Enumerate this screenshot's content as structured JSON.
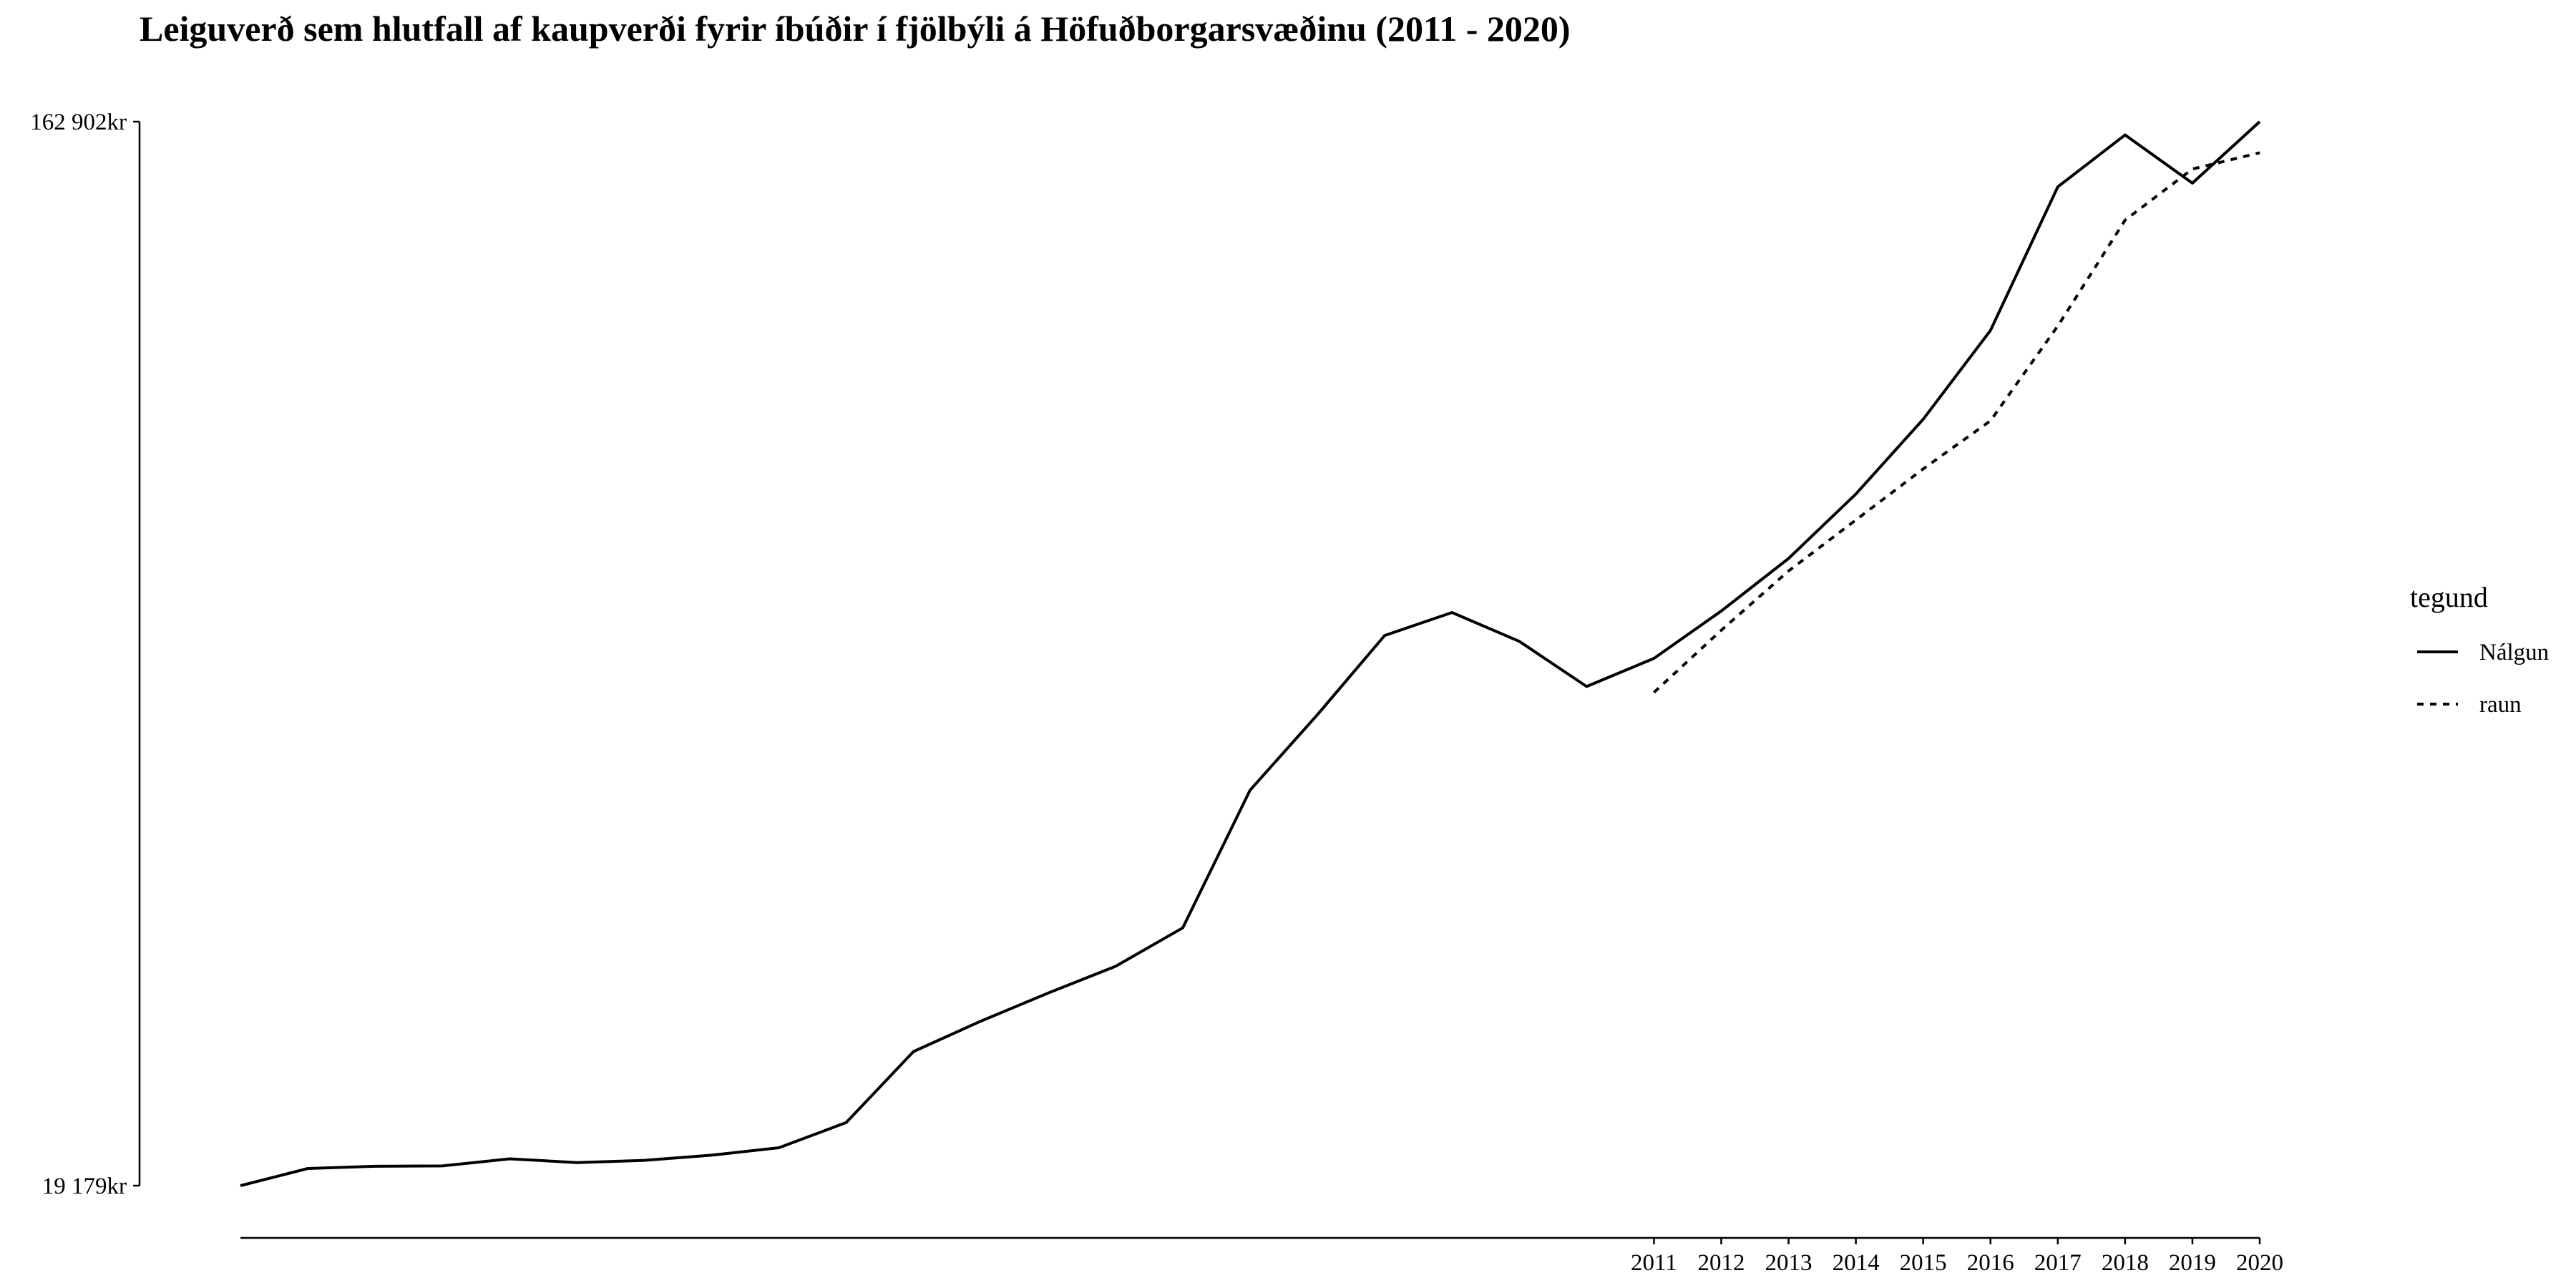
{
  "chart_data": {
    "type": "line",
    "title": "Leiguverð sem hlutfall af kaupverði fyrir íbúðir í fjölbýli á Höfuðborgarsvæðinu (2011 - 2020)",
    "xlabel": "",
    "ylabel": "",
    "y_ticks": [
      {
        "value": 19179,
        "label": "19 179kr"
      },
      {
        "value": 162902,
        "label": "162 902kr"
      }
    ],
    "ylim": [
      19179,
      162902
    ],
    "x_ticks": [
      "2011",
      "2012",
      "2013",
      "2014",
      "2015",
      "2016",
      "2017",
      "2018",
      "2019",
      "2020"
    ],
    "grid": false,
    "legend": {
      "title": "tegund",
      "position": "right",
      "entries": [
        {
          "name": "Nálgun",
          "style": "solid"
        },
        {
          "name": "raun",
          "style": "dashed"
        }
      ]
    },
    "series": [
      {
        "name": "Nálgun",
        "style": "solid",
        "x": [
          1990,
          1991,
          1992,
          1993,
          1994,
          1995,
          1996,
          1997,
          1998,
          1999,
          2000,
          2001,
          2002,
          2003,
          2004,
          2005,
          2006,
          2007,
          2008,
          2009,
          2010,
          2011,
          2012,
          2013,
          2014,
          2015,
          2016,
          2017,
          2018,
          2019,
          2020
        ],
        "values": [
          19179,
          21500,
          21800,
          21850,
          22800,
          22300,
          22600,
          23300,
          24300,
          27700,
          37300,
          41400,
          45200,
          48800,
          54000,
          72600,
          82800,
          93500,
          96600,
          92700,
          86600,
          90400,
          96800,
          103900,
          112600,
          122700,
          134700,
          154100,
          161100,
          154600,
          162902
        ]
      },
      {
        "name": "raun",
        "style": "dashed",
        "x": [
          2011,
          2012,
          2013,
          2014,
          2015,
          2016,
          2017,
          2018,
          2019,
          2020
        ],
        "values": [
          85800,
          94200,
          102200,
          109100,
          116000,
          122500,
          135300,
          149600,
          156500,
          158700
        ]
      }
    ]
  }
}
